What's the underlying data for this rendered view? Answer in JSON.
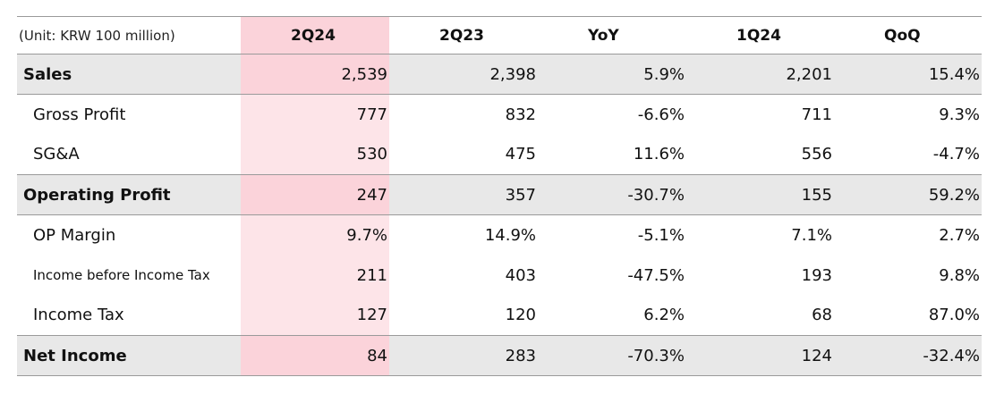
{
  "table": {
    "unit_label": "(Unit: KRW 100 million)",
    "columns": [
      "2Q24",
      "2Q23",
      "YoY",
      "1Q24",
      "QoQ"
    ],
    "rows": [
      {
        "label": "Sales",
        "values": [
          "2,539",
          "2,398",
          "5.9%",
          "2,201",
          "15.4%"
        ]
      },
      {
        "label": "Gross Profit",
        "values": [
          "777",
          "832",
          "-6.6%",
          "711",
          "9.3%"
        ]
      },
      {
        "label": "SG&A",
        "values": [
          "530",
          "475",
          "11.6%",
          "556",
          "-4.7%"
        ]
      },
      {
        "label": "Operating Profit",
        "values": [
          "247",
          "357",
          "-30.7%",
          "155",
          "59.2%"
        ]
      },
      {
        "label": "OP Margin",
        "values": [
          "9.7%",
          "14.9%",
          "-5.1%",
          "7.1%",
          "2.7%"
        ]
      },
      {
        "label": "Income before Income Tax",
        "values": [
          "211",
          "403",
          "-47.5%",
          "193",
          "9.8%"
        ]
      },
      {
        "label": "Income Tax",
        "values": [
          "127",
          "120",
          "6.2%",
          "68",
          "87.0%"
        ]
      },
      {
        "label": "Net Income",
        "values": [
          "84",
          "283",
          "-70.3%",
          "124",
          "-32.4%"
        ]
      }
    ]
  },
  "colors": {
    "highlight_column": "#fde4e8",
    "highlight_header": "#fbd3da",
    "major_row_background": "#e8e8e8",
    "rule_line": "#9a9a9a"
  }
}
